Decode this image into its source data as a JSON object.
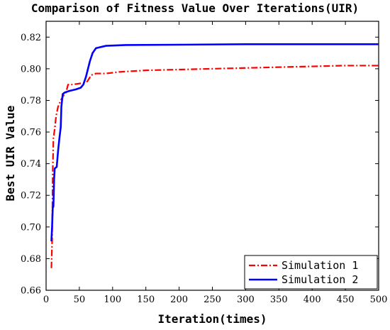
{
  "chart_data": {
    "type": "line",
    "title": "Comparison of Fitness Value Over Iterations(UIR)",
    "xlabel": "Iteration(times)",
    "ylabel": "Best UIR Value",
    "xlim": [
      0,
      500
    ],
    "ylim": [
      0.66,
      0.83
    ],
    "xticks": [
      "0",
      "50",
      "100",
      "150",
      "200",
      "250",
      "300",
      "350",
      "400",
      "450",
      "500"
    ],
    "yticks": [
      "0.66",
      "0.68",
      "0.70",
      "0.72",
      "0.74",
      "0.76",
      "0.78",
      "0.80",
      "0.82"
    ],
    "grid": false,
    "legend_position": "bottom-right",
    "series": [
      {
        "name": "Simulation 1",
        "color": "#ff0000",
        "style": "dash-dot",
        "points": [
          [
            8,
            0.674
          ],
          [
            9,
            0.69
          ],
          [
            10,
            0.735
          ],
          [
            11,
            0.756
          ],
          [
            13,
            0.762
          ],
          [
            15,
            0.77
          ],
          [
            18,
            0.776
          ],
          [
            22,
            0.78
          ],
          [
            26,
            0.783
          ],
          [
            30,
            0.785
          ],
          [
            33,
            0.79
          ],
          [
            40,
            0.79
          ],
          [
            55,
            0.791
          ],
          [
            62,
            0.792
          ],
          [
            68,
            0.796
          ],
          [
            75,
            0.797
          ],
          [
            90,
            0.797
          ],
          [
            110,
            0.798
          ],
          [
            150,
            0.799
          ],
          [
            200,
            0.7995
          ],
          [
            250,
            0.8
          ],
          [
            300,
            0.8005
          ],
          [
            350,
            0.801
          ],
          [
            400,
            0.8015
          ],
          [
            450,
            0.802
          ],
          [
            500,
            0.802
          ]
        ]
      },
      {
        "name": "Simulation 2",
        "color": "#0000ff",
        "style": "solid",
        "points": [
          [
            8,
            0.691
          ],
          [
            9,
            0.7
          ],
          [
            10,
            0.712
          ],
          [
            11,
            0.713
          ],
          [
            12,
            0.73
          ],
          [
            13,
            0.737
          ],
          [
            16,
            0.738
          ],
          [
            18,
            0.748
          ],
          [
            20,
            0.756
          ],
          [
            22,
            0.763
          ],
          [
            23,
            0.776
          ],
          [
            25,
            0.784
          ],
          [
            28,
            0.785
          ],
          [
            35,
            0.786
          ],
          [
            45,
            0.787
          ],
          [
            52,
            0.788
          ],
          [
            56,
            0.79
          ],
          [
            60,
            0.795
          ],
          [
            63,
            0.8
          ],
          [
            66,
            0.805
          ],
          [
            70,
            0.81
          ],
          [
            75,
            0.813
          ],
          [
            90,
            0.8145
          ],
          [
            120,
            0.815
          ],
          [
            200,
            0.8152
          ],
          [
            300,
            0.8155
          ],
          [
            400,
            0.8155
          ],
          [
            500,
            0.8155
          ]
        ]
      }
    ]
  }
}
